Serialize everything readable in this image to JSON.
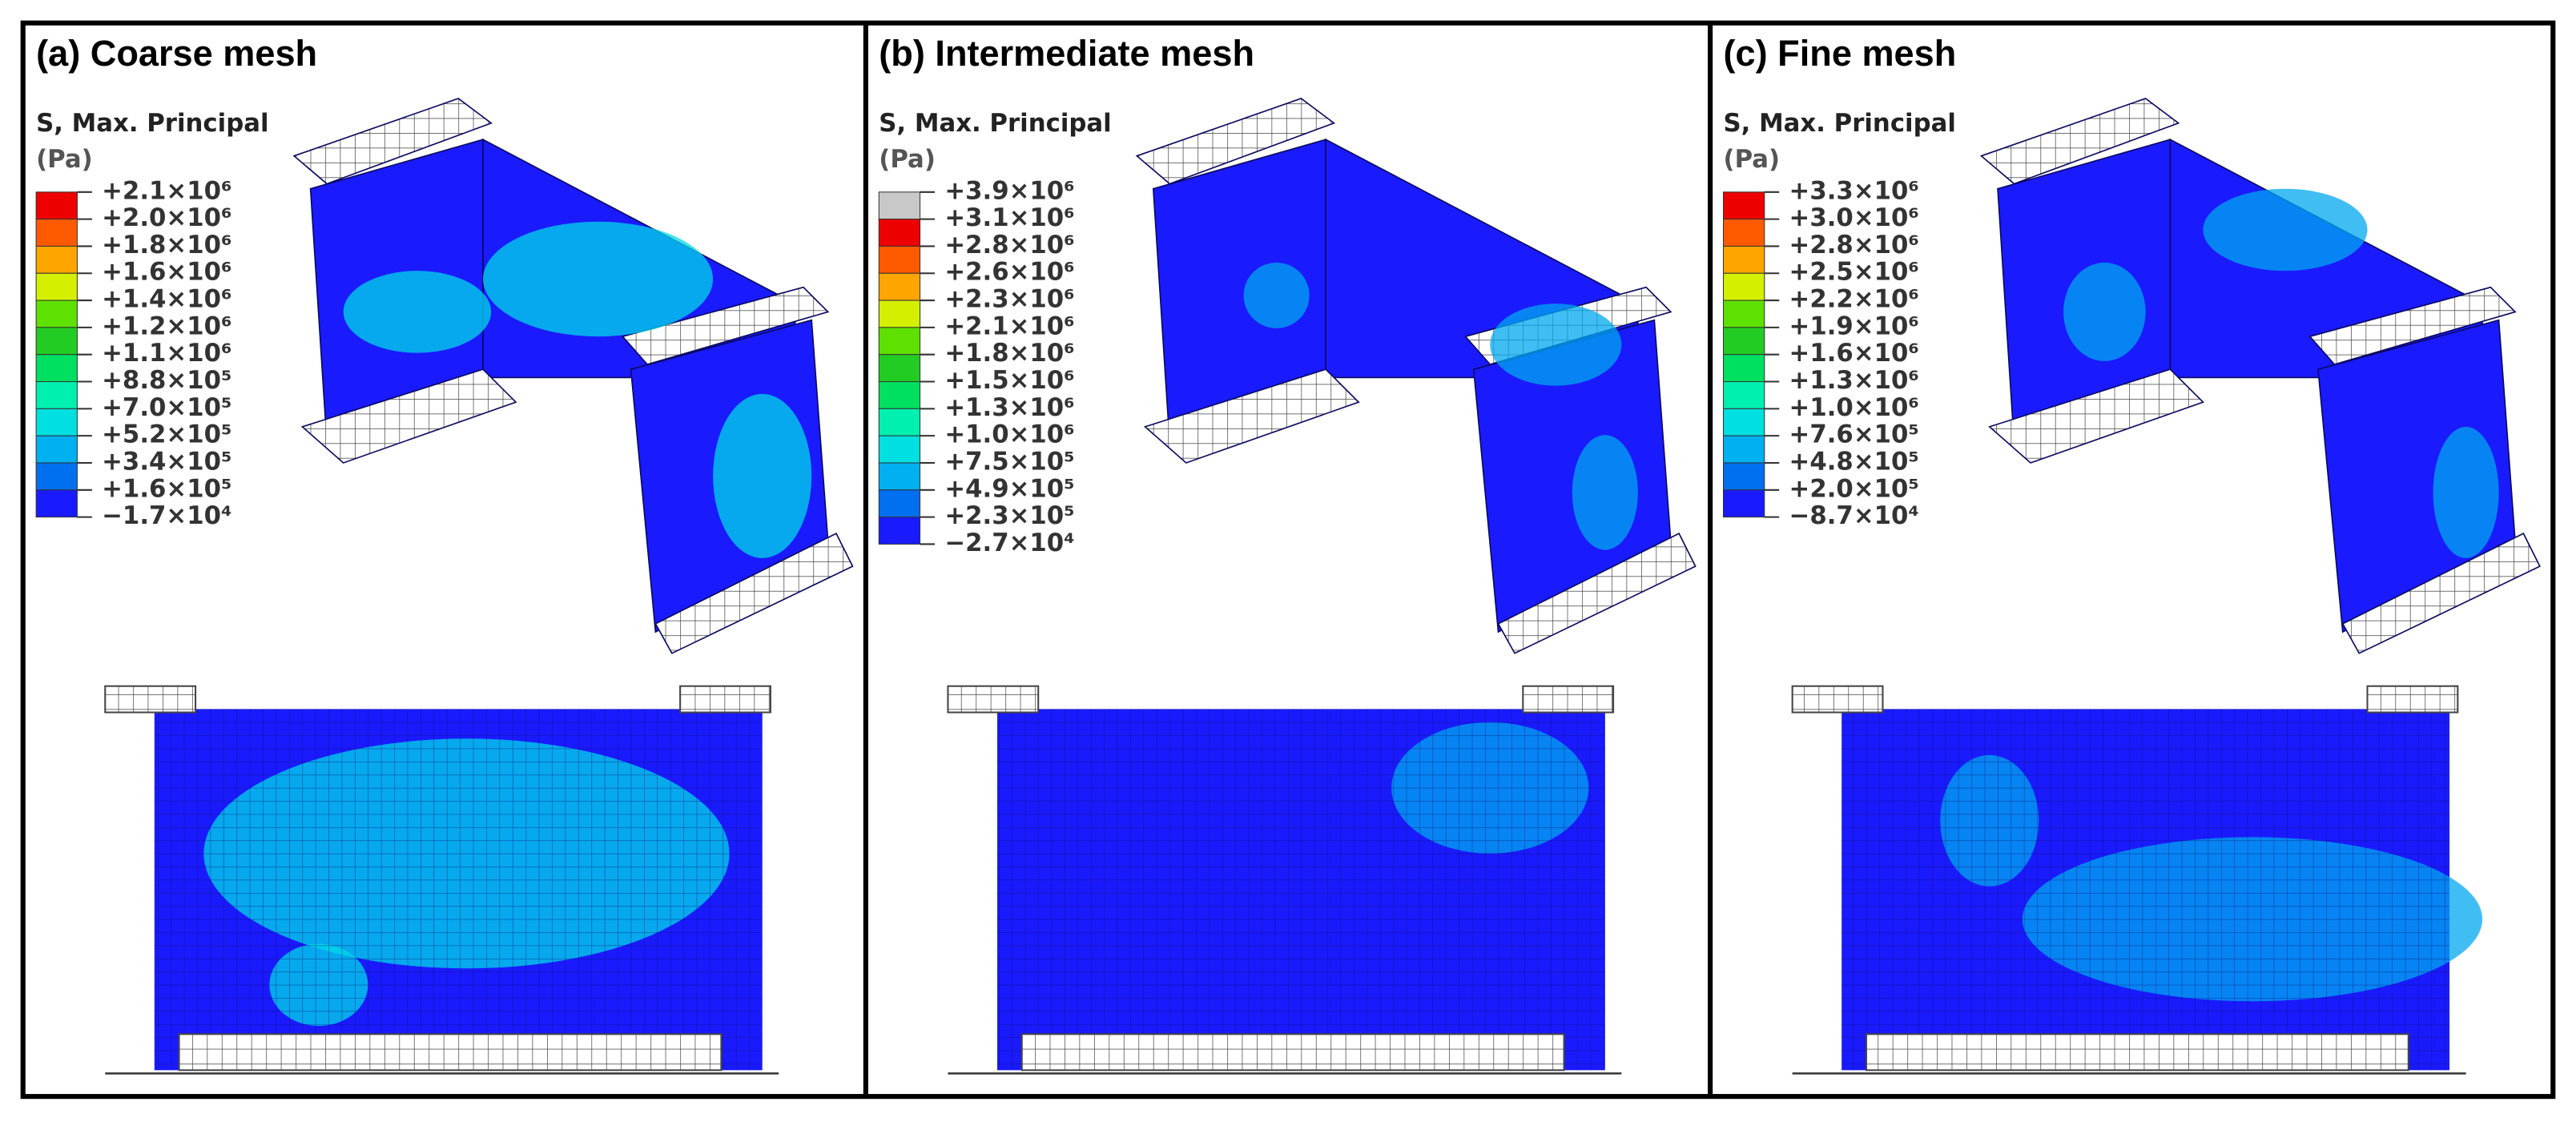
{
  "panels": [
    {
      "title": "(a) Coarse mesh",
      "legend_title": "S, Max. Principal",
      "legend_unit": "(Pa)",
      "legend_labels": [
        "+2.1×10⁶",
        "+2.0×10⁶",
        "+1.8×10⁶",
        "+1.6×10⁶",
        "+1.4×10⁶",
        "+1.2×10⁶",
        "+1.1×10⁶",
        "+8.8×10⁵",
        "+7.0×10⁵",
        "+5.2×10⁵",
        "+3.4×10⁵",
        "+1.6×10⁵",
        "−1.7×10⁴"
      ],
      "legend_colors": [
        "#ee0000",
        "#ff5a00",
        "#ffa500",
        "#d4f000",
        "#5ee000",
        "#22cc22",
        "#00e060",
        "#00f0b0",
        "#00e0e0",
        "#00b0f0",
        "#0070f0",
        "#1a1aff"
      ]
    },
    {
      "title": "(b) Intermediate mesh",
      "legend_title": "S, Max. Principal",
      "legend_unit": "(Pa)",
      "legend_labels": [
        "+3.9×10⁶",
        "+3.1×10⁶",
        "+2.8×10⁶",
        "+2.6×10⁶",
        "+2.3×10⁶",
        "+2.1×10⁶",
        "+1.8×10⁶",
        "+1.5×10⁶",
        "+1.3×10⁶",
        "+1.0×10⁶",
        "+7.5×10⁵",
        "+4.9×10⁵",
        "+2.3×10⁵",
        "−2.7×10⁴"
      ],
      "legend_colors": [
        "#c8c8c8",
        "#ee0000",
        "#ff5a00",
        "#ffa500",
        "#d4f000",
        "#5ee000",
        "#22cc22",
        "#00e060",
        "#00f0b0",
        "#00e0e0",
        "#00b0f0",
        "#0070f0",
        "#1a1aff"
      ]
    },
    {
      "title": "(c) Fine mesh",
      "legend_title": "S, Max. Principal",
      "legend_unit": "(Pa)",
      "legend_labels": [
        "+3.3×10⁶",
        "+3.0×10⁶",
        "+2.8×10⁶",
        "+2.5×10⁶",
        "+2.2×10⁶",
        "+1.9×10⁶",
        "+1.6×10⁶",
        "+1.3×10⁶",
        "+1.0×10⁶",
        "+7.6×10⁵",
        "+4.8×10⁵",
        "+2.0×10⁵",
        "−8.7×10⁴"
      ],
      "legend_colors": [
        "#ee0000",
        "#ff5a00",
        "#ffa500",
        "#d4f000",
        "#5ee000",
        "#22cc22",
        "#00e060",
        "#00f0b0",
        "#00e0e0",
        "#00b0f0",
        "#0070f0",
        "#1a1aff"
      ]
    }
  ]
}
